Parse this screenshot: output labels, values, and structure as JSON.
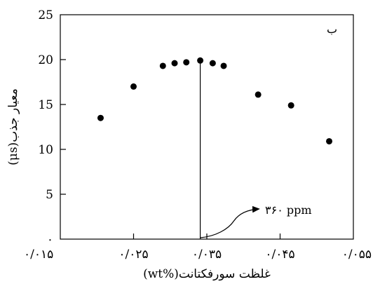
{
  "chart_data": {
    "type": "scatter",
    "panel_label": "ب",
    "xlabel": "غلظت سورفکتانت(%wt)",
    "ylabel": "معیار جذب(μs)",
    "x_ticks": [
      {
        "value": 0.015,
        "label": "۰/۰۱۵"
      },
      {
        "value": 0.025,
        "label": "۰/۰۲۵"
      },
      {
        "value": 0.035,
        "label": "۰/۰۳۵"
      },
      {
        "value": 0.045,
        "label": "۰/۰۴۵"
      },
      {
        "value": 0.055,
        "label": "۰/۰۵۵"
      }
    ],
    "y_ticks": [
      {
        "value": 0,
        "label": "۰"
      },
      {
        "value": 5,
        "label": "5"
      },
      {
        "value": 10,
        "label": "10"
      },
      {
        "value": 15,
        "label": "15"
      },
      {
        "value": 20,
        "label": "20"
      },
      {
        "value": 25,
        "label": "25"
      }
    ],
    "xlim": [
      0.015,
      0.055
    ],
    "ylim": [
      0,
      25
    ],
    "grid": false,
    "points": [
      {
        "x": 0.0205,
        "y": 13.5
      },
      {
        "x": 0.025,
        "y": 17.0
      },
      {
        "x": 0.029,
        "y": 19.3
      },
      {
        "x": 0.0306,
        "y": 19.6
      },
      {
        "x": 0.0322,
        "y": 19.7
      },
      {
        "x": 0.0341,
        "y": 19.9
      },
      {
        "x": 0.0358,
        "y": 19.6
      },
      {
        "x": 0.0373,
        "y": 19.3
      },
      {
        "x": 0.042,
        "y": 16.1
      },
      {
        "x": 0.0465,
        "y": 14.9
      },
      {
        "x": 0.0517,
        "y": 10.9
      }
    ],
    "marker_color": "#000000",
    "annotation": {
      "x": 0.0341,
      "label": "۳۶۰ ppm"
    }
  }
}
